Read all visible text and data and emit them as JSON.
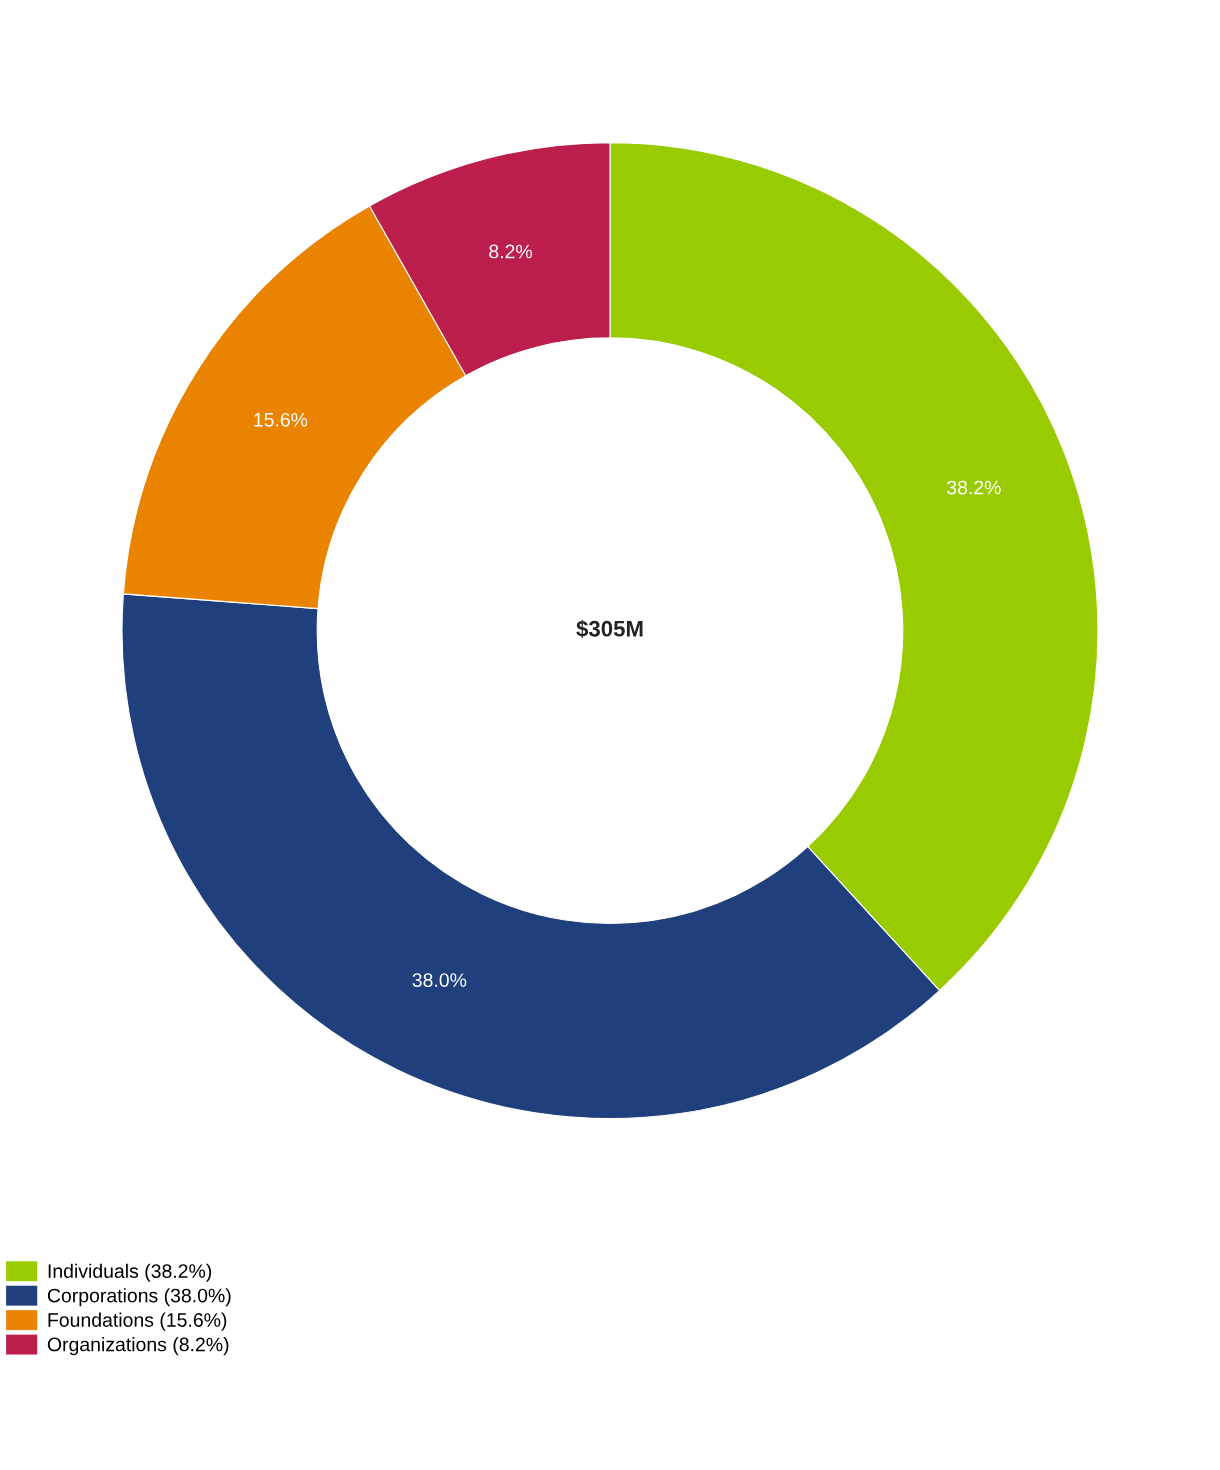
{
  "chart_data": {
    "type": "donut",
    "categories": [
      "Individuals (38.2%)",
      "Corporations (38.0%)",
      "Foundations (15.6%)",
      "Organizations (8.2%)"
    ],
    "value_labels": [
      "38.2%",
      "38.0%",
      "15.6%",
      "8.2%"
    ],
    "values": [
      38.2,
      38.0,
      15.6,
      8.2
    ],
    "colors": [
      "#99cc00",
      "#1f407c",
      "#e98300",
      "#bd1f4d"
    ],
    "data_labels": true,
    "legend": "bottom left",
    "annotations": [
      "$305M"
    ]
  }
}
